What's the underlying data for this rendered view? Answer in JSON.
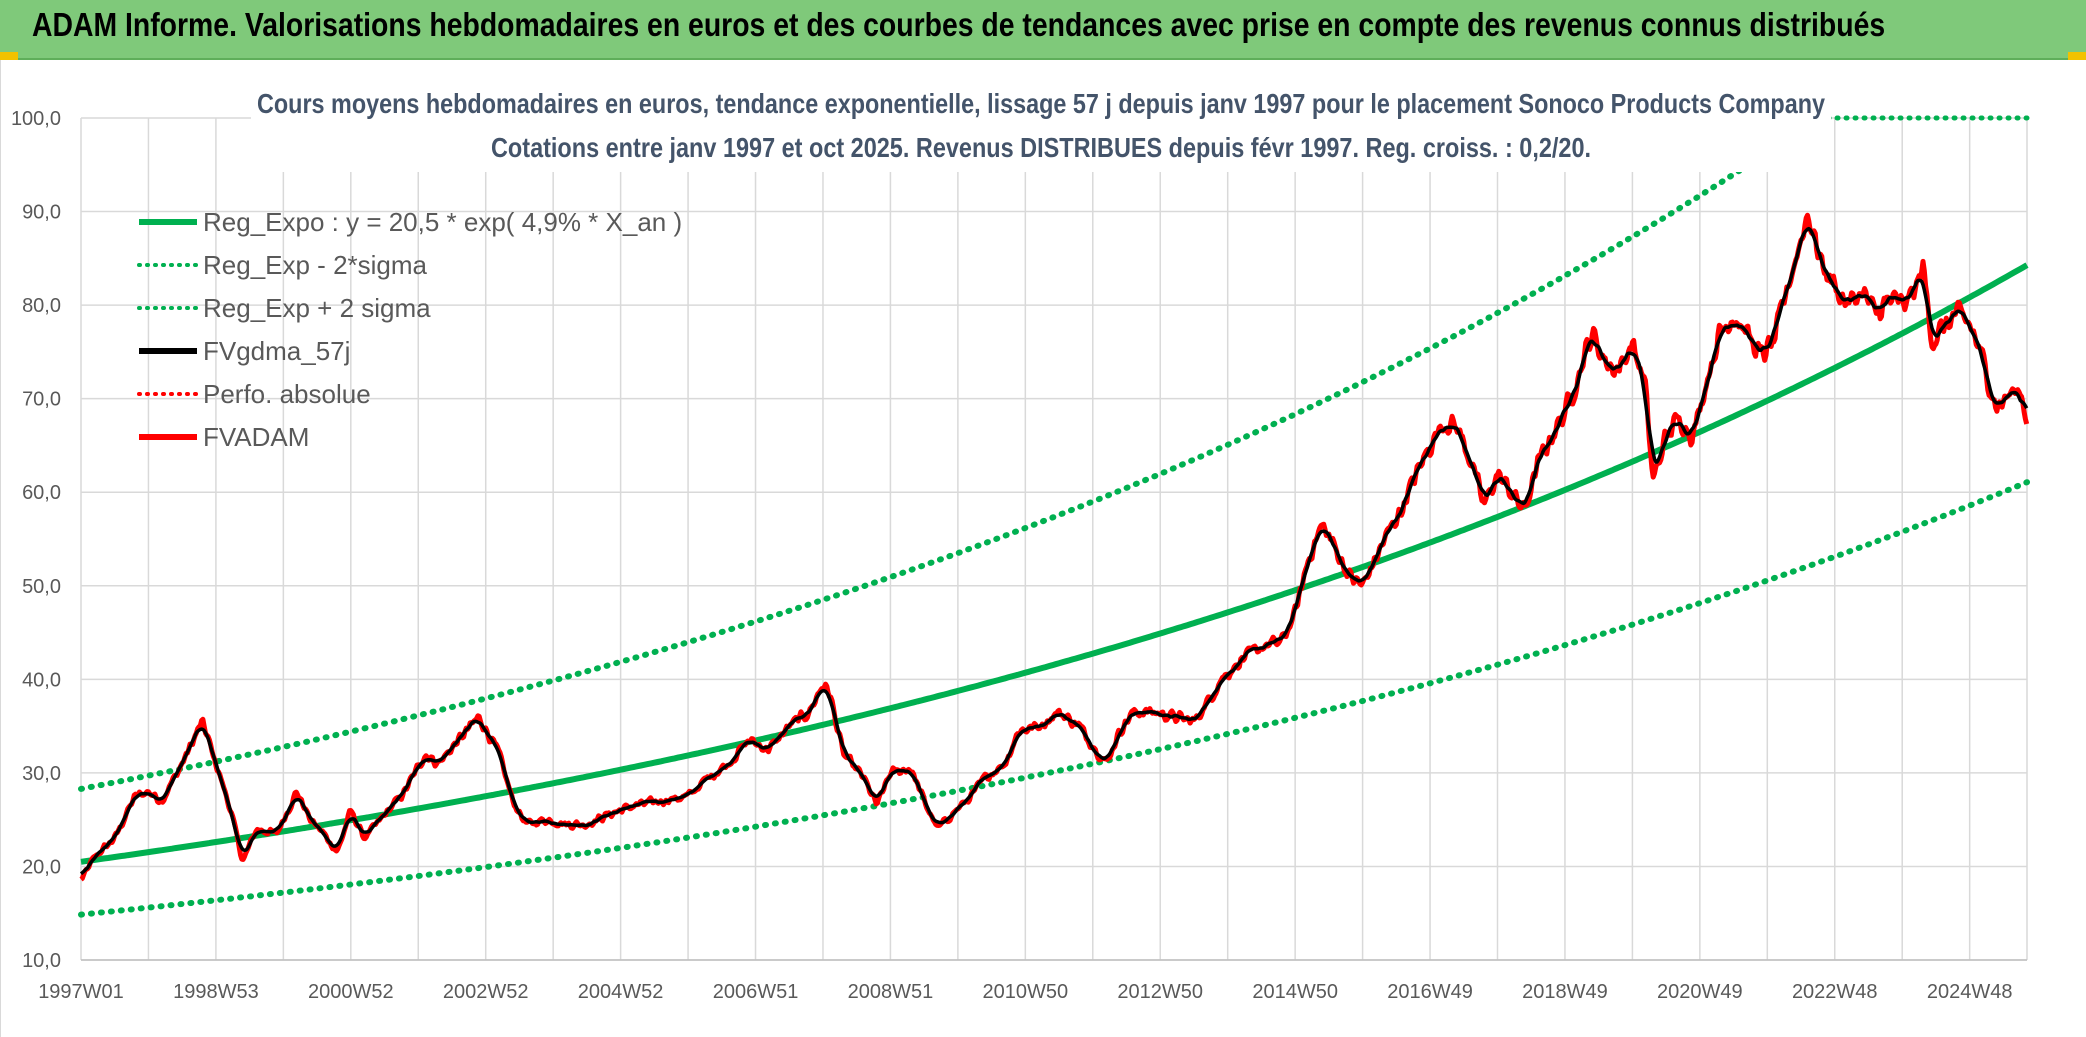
{
  "header": {
    "title": "ADAM Informe. Valorisations hebdomadaires en euros et des courbes de tendances avec prise en compte des revenus connus distribués"
  },
  "chart_data": {
    "type": "line",
    "title": "Cours moyens hebdomadaires en euros, tendance exponentielle, lissage 57 j depuis janv 1997 pour le placement Sonoco Products Company",
    "subtitle": "Cotations entre janv 1997 et oct 2025. Revenus DISTRIBUES depuis févr 1997. Reg. croiss. : 0,2/20.",
    "xlabel": "",
    "ylabel": "",
    "ylim": [
      10,
      100
    ],
    "xlim": [
      1997.0,
      2025.85
    ],
    "y_ticks": [
      "10,0",
      "20,0",
      "30,0",
      "40,0",
      "50,0",
      "60,0",
      "70,0",
      "80,0",
      "90,0",
      "100,0"
    ],
    "x_ticks": [
      {
        "label": "1997W01",
        "x": 1997.0
      },
      {
        "label": "1998W53",
        "x": 1999.0
      },
      {
        "label": "2000W52",
        "x": 2001.0
      },
      {
        "label": "2002W52",
        "x": 2003.0
      },
      {
        "label": "2004W52",
        "x": 2005.0
      },
      {
        "label": "2006W51",
        "x": 2007.0
      },
      {
        "label": "2008W51",
        "x": 2009.0
      },
      {
        "label": "2010W50",
        "x": 2011.0
      },
      {
        "label": "2012W50",
        "x": 2013.0
      },
      {
        "label": "2014W50",
        "x": 2015.0
      },
      {
        "label": "2016W49",
        "x": 2017.0
      },
      {
        "label": "2018W49",
        "x": 2019.0
      },
      {
        "label": "2020W49",
        "x": 2021.0
      },
      {
        "label": "2022W48",
        "x": 2023.0
      },
      {
        "label": "2024W48",
        "x": 2025.0
      }
    ],
    "grid": true,
    "legend_position": "top-left",
    "trend": {
      "a": 20.5,
      "rate": 0.049,
      "sigma_factor": 1.38
    },
    "series": [
      {
        "name": "Reg_Expo : y = 20,5 * exp( 4,9% *  X_an )",
        "color": "#00b050",
        "style": "solid",
        "kind": "trend"
      },
      {
        "name": "Reg_Exp - 2*sigma",
        "color": "#00b050",
        "style": "dotted",
        "kind": "lower"
      },
      {
        "name": "Reg_Exp + 2 sigma",
        "color": "#00b050",
        "style": "dotted",
        "kind": "upper"
      },
      {
        "name": "FVgdma_57j",
        "color": "#000000",
        "style": "solid",
        "kind": "smooth"
      },
      {
        "name": "Perfo. absolue",
        "color": "#ff0000",
        "style": "dotted",
        "kind": "none"
      },
      {
        "name": "FVADAM",
        "color": "#ff0000",
        "style": "solid",
        "kind": "price"
      }
    ],
    "price_points": [
      [
        1997.0,
        18.5
      ],
      [
        1997.2,
        21.0
      ],
      [
        1997.5,
        23.0
      ],
      [
        1997.8,
        27.5
      ],
      [
        1998.0,
        28.0
      ],
      [
        1998.2,
        27.0
      ],
      [
        1998.5,
        31.0
      ],
      [
        1998.8,
        35.5
      ],
      [
        1999.0,
        31.0
      ],
      [
        1999.2,
        26.5
      ],
      [
        1999.4,
        20.5
      ],
      [
        1999.6,
        24.0
      ],
      [
        1999.9,
        23.5
      ],
      [
        2000.2,
        28.0
      ],
      [
        2000.4,
        25.0
      ],
      [
        2000.6,
        23.5
      ],
      [
        2000.8,
        21.5
      ],
      [
        2001.0,
        26.0
      ],
      [
        2001.2,
        23.0
      ],
      [
        2001.5,
        25.5
      ],
      [
        2001.8,
        28.0
      ],
      [
        2002.1,
        32.0
      ],
      [
        2002.3,
        31.0
      ],
      [
        2002.6,
        33.5
      ],
      [
        2002.9,
        36.0
      ],
      [
        2003.2,
        32.0
      ],
      [
        2003.4,
        27.0
      ],
      [
        2003.6,
        24.5
      ],
      [
        2003.9,
        25.0
      ],
      [
        2004.2,
        24.5
      ],
      [
        2004.5,
        24.5
      ],
      [
        2004.8,
        25.5
      ],
      [
        2005.2,
        26.5
      ],
      [
        2005.6,
        27.0
      ],
      [
        2006.0,
        27.5
      ],
      [
        2006.3,
        29.5
      ],
      [
        2006.6,
        31.0
      ],
      [
        2006.9,
        33.5
      ],
      [
        2007.2,
        32.5
      ],
      [
        2007.5,
        35.0
      ],
      [
        2007.8,
        36.5
      ],
      [
        2008.0,
        39.5
      ],
      [
        2008.1,
        38.5
      ],
      [
        2008.3,
        32.0
      ],
      [
        2008.6,
        29.5
      ],
      [
        2008.8,
        26.5
      ],
      [
        2009.0,
        30.0
      ],
      [
        2009.3,
        30.5
      ],
      [
        2009.5,
        27.0
      ],
      [
        2009.7,
        24.0
      ],
      [
        2009.9,
        25.5
      ],
      [
        2010.2,
        27.5
      ],
      [
        2010.4,
        29.5
      ],
      [
        2010.7,
        31.0
      ],
      [
        2010.9,
        34.5
      ],
      [
        2011.2,
        35.0
      ],
      [
        2011.5,
        36.5
      ],
      [
        2011.8,
        35.0
      ],
      [
        2012.0,
        33.0
      ],
      [
        2012.2,
        31.0
      ],
      [
        2012.4,
        34.5
      ],
      [
        2012.6,
        36.5
      ],
      [
        2012.9,
        36.5
      ],
      [
        2013.2,
        36.0
      ],
      [
        2013.5,
        35.5
      ],
      [
        2013.7,
        37.5
      ],
      [
        2013.9,
        40.0
      ],
      [
        2014.2,
        42.0
      ],
      [
        2014.5,
        43.5
      ],
      [
        2014.8,
        44.0
      ],
      [
        2015.0,
        47.0
      ],
      [
        2015.2,
        53.0
      ],
      [
        2015.4,
        56.5
      ],
      [
        2015.6,
        54.0
      ],
      [
        2015.8,
        51.0
      ],
      [
        2016.0,
        50.0
      ],
      [
        2016.2,
        53.0
      ],
      [
        2016.4,
        56.0
      ],
      [
        2016.6,
        58.5
      ],
      [
        2016.8,
        62.0
      ],
      [
        2017.0,
        65.0
      ],
      [
        2017.2,
        67.5
      ],
      [
        2017.4,
        67.0
      ],
      [
        2017.6,
        63.5
      ],
      [
        2017.8,
        58.5
      ],
      [
        2018.0,
        62.0
      ],
      [
        2018.2,
        60.0
      ],
      [
        2018.4,
        58.0
      ],
      [
        2018.6,
        63.0
      ],
      [
        2018.8,
        66.0
      ],
      [
        2019.0,
        68.5
      ],
      [
        2019.2,
        72.5
      ],
      [
        2019.4,
        77.0
      ],
      [
        2019.6,
        74.0
      ],
      [
        2019.8,
        73.0
      ],
      [
        2020.0,
        76.0
      ],
      [
        2020.2,
        71.0
      ],
      [
        2020.3,
        61.0
      ],
      [
        2020.5,
        66.0
      ],
      [
        2020.7,
        68.0
      ],
      [
        2020.9,
        66.0
      ],
      [
        2021.1,
        72.0
      ],
      [
        2021.3,
        77.0
      ],
      [
        2021.5,
        79.0
      ],
      [
        2021.7,
        77.0
      ],
      [
        2021.9,
        74.5
      ],
      [
        2022.1,
        76.0
      ],
      [
        2022.3,
        82.0
      ],
      [
        2022.5,
        87.0
      ],
      [
        2022.6,
        90.0
      ],
      [
        2022.8,
        84.5
      ],
      [
        2023.0,
        82.0
      ],
      [
        2023.2,
        80.0
      ],
      [
        2023.4,
        81.5
      ],
      [
        2023.6,
        79.0
      ],
      [
        2023.8,
        80.5
      ],
      [
        2024.0,
        80.0
      ],
      [
        2024.2,
        81.5
      ],
      [
        2024.3,
        84.5
      ],
      [
        2024.45,
        76.0
      ],
      [
        2024.6,
        77.5
      ],
      [
        2024.8,
        79.0
      ],
      [
        2025.0,
        78.0
      ],
      [
        2025.2,
        74.0
      ],
      [
        2025.4,
        69.0
      ],
      [
        2025.6,
        70.5
      ],
      [
        2025.75,
        71.0
      ],
      [
        2025.85,
        68.0
      ]
    ]
  }
}
